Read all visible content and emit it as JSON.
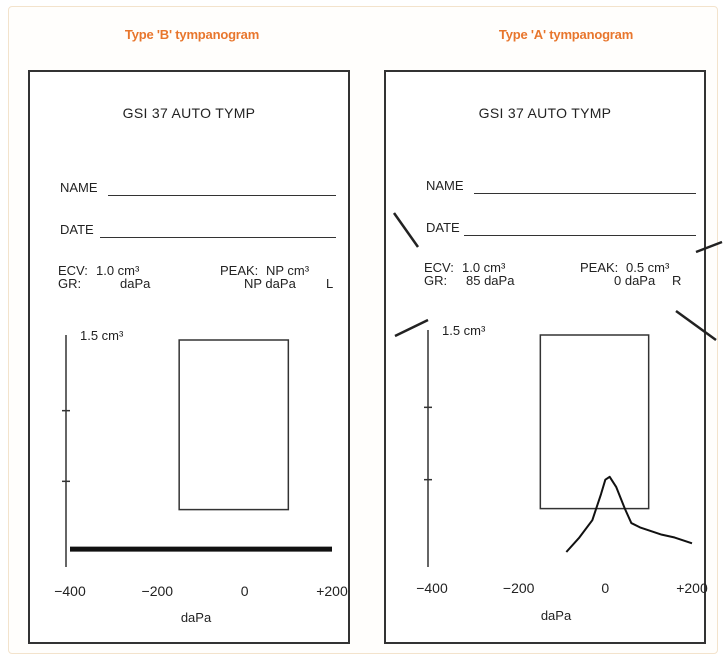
{
  "headings": {
    "left": "Type 'B' tympanogram",
    "right": "Type 'A' tympanogram"
  },
  "panels": [
    {
      "title": "GSI 37 AUTO TYMP",
      "name_label": "NAME",
      "date_label": "DATE",
      "ecv_label": "ECV:",
      "ecv_value": "1.0 cm³",
      "gr_label": "GR:",
      "gr_value": "daPa",
      "peak_label": "PEAK:",
      "peak_value": "NP cm³",
      "peak_pressure": "NP daPa",
      "ear": "L",
      "y_max_label": "1.5 cm³",
      "x_unit": "daPa"
    },
    {
      "title": "GSI 37 AUTO TYMP",
      "name_label": "NAME",
      "date_label": "DATE",
      "ecv_label": "ECV:",
      "ecv_value": "1.0 cm³",
      "gr_label": "GR:",
      "gr_value": "85 daPa",
      "peak_label": "PEAK:",
      "peak_value": "0.5 cm³",
      "peak_pressure": "0 daPa",
      "ear": "R",
      "y_max_label": "1.5 cm³",
      "x_unit": "daPa"
    }
  ],
  "colors": {
    "heading": "#e8762d",
    "ink": "#222222"
  },
  "chart_data": [
    {
      "type": "line",
      "title": "Type 'B' tympanogram",
      "xlabel": "daPa",
      "ylabel": "1.5 cm³",
      "x_ticks": [
        -400,
        -200,
        0,
        200
      ],
      "x_tick_labels": [
        "−400",
        "−200",
        "0",
        "+200"
      ],
      "xlim": [
        -400,
        200
      ],
      "ylim": [
        0,
        1.5
      ],
      "normal_box": {
        "x": [
          -150,
          100
        ],
        "y": [
          0.3,
          1.5
        ]
      },
      "series": [
        {
          "x": [
            -400,
            -300,
            -200,
            -100,
            0,
            100,
            200
          ],
          "y": [
            0.02,
            0.02,
            0.02,
            0.02,
            0.02,
            0.02,
            0.02
          ]
        }
      ]
    },
    {
      "type": "line",
      "title": "Type 'A' tympanogram",
      "xlabel": "daPa",
      "ylabel": "1.5 cm³",
      "x_ticks": [
        -400,
        -200,
        0,
        200
      ],
      "x_tick_labels": [
        "−400",
        "−200",
        "0",
        "+200"
      ],
      "xlim": [
        -400,
        200
      ],
      "ylim": [
        0,
        1.5
      ],
      "normal_box": {
        "x": [
          -150,
          100
        ],
        "y": [
          0.3,
          1.5
        ]
      },
      "series": [
        {
          "x": [
            -90,
            -60,
            -30,
            -10,
            0,
            10,
            25,
            45,
            60,
            80,
            100,
            130,
            160,
            200
          ],
          "y": [
            0.0,
            0.1,
            0.22,
            0.4,
            0.5,
            0.52,
            0.45,
            0.3,
            0.2,
            0.17,
            0.15,
            0.12,
            0.1,
            0.06
          ]
        }
      ]
    }
  ]
}
